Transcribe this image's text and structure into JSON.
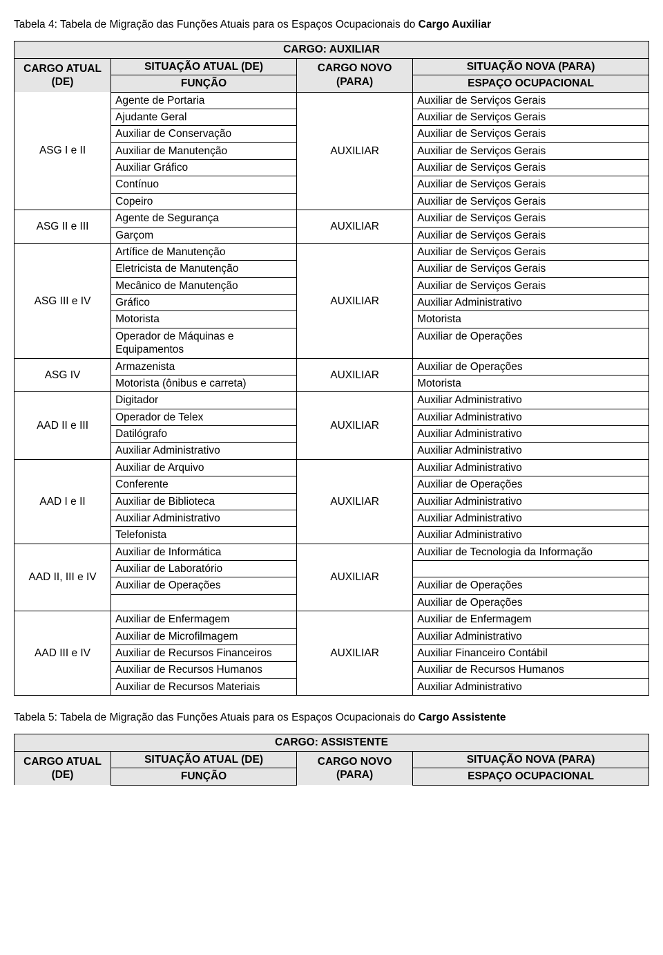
{
  "caption4_prefix": "Tabela 4: Tabela de Migração das Funções Atuais para os Espaços Ocupacionais do ",
  "caption4_bold": "Cargo Auxiliar",
  "table4": {
    "title": "CARGO: AUXILIAR",
    "h_cargo_atual": "CARGO ATUAL (DE)",
    "h_sit_atual": "SITUAÇÃO ATUAL (DE)",
    "h_funcao": "FUNÇÃO",
    "h_cargo_novo": "CARGO NOVO (PARA)",
    "h_sit_nova": "SITUAÇÃO NOVA (PARA)",
    "h_espaco": "ESPAÇO OCUPACIONAL",
    "groups": [
      {
        "label": "ASG  I e II",
        "novo": "AUXILIAR",
        "rows": [
          {
            "f": "Agente de Portaria",
            "e": "Auxiliar de Serviços Gerais"
          },
          {
            "f": "Ajudante Geral",
            "e": "Auxiliar de Serviços Gerais"
          },
          {
            "f": "Auxiliar de Conservação",
            "e": "Auxiliar de Serviços Gerais"
          },
          {
            "f": "Auxiliar de Manutenção",
            "e": "Auxiliar de Serviços Gerais"
          },
          {
            "f": "Auxiliar Gráfico",
            "e": "Auxiliar de Serviços Gerais"
          },
          {
            "f": "Contínuo",
            "e": "Auxiliar de Serviços Gerais"
          },
          {
            "f": "Copeiro",
            "e": "Auxiliar de Serviços Gerais"
          }
        ]
      },
      {
        "label": "ASG  II e III",
        "novo": "AUXILIAR",
        "rows": [
          {
            "f": "Agente de Segurança",
            "e": "Auxiliar de Serviços Gerais"
          },
          {
            "f": "Garçom",
            "e": "Auxiliar de Serviços Gerais"
          }
        ]
      },
      {
        "label": "ASG  III e IV",
        "novo": "AUXILIAR",
        "rows": [
          {
            "f": "Artífice de Manutenção",
            "e": "Auxiliar de Serviços Gerais"
          },
          {
            "f": "Eletricista de Manutenção",
            "e": "Auxiliar de Serviços Gerais"
          },
          {
            "f": "Mecânico de Manutenção",
            "e": "Auxiliar de Serviços Gerais"
          },
          {
            "f": "Gráfico",
            "e": "Auxiliar Administrativo"
          },
          {
            "f": "Motorista",
            "e": "Motorista"
          },
          {
            "f": "Operador de Máquinas e Equipamentos",
            "e": "Auxiliar de Operações"
          }
        ]
      },
      {
        "label": "ASG IV",
        "novo": "AUXILIAR",
        "rows": [
          {
            "f": "Armazenista",
            "e": "Auxiliar de Operações"
          },
          {
            "f": "Motorista (ônibus e carreta)",
            "e": "Motorista"
          }
        ]
      },
      {
        "label": "AAD   II e III",
        "novo": "AUXILIAR",
        "rows": [
          {
            "f": "Digitador",
            "e": "Auxiliar Administrativo"
          },
          {
            "f": "Operador de Telex",
            "e": "Auxiliar Administrativo"
          },
          {
            "f": "Datilógrafo",
            "e": "Auxiliar Administrativo"
          },
          {
            "f": "Auxiliar Administrativo",
            "e": "Auxiliar Administrativo"
          }
        ]
      },
      {
        "label": "AAD  I e II",
        "novo": "AUXILIAR",
        "rows": [
          {
            "f": "Auxiliar de Arquivo",
            "e": "Auxiliar Administrativo"
          },
          {
            "f": "Conferente",
            "e": "Auxiliar de Operações"
          },
          {
            "f": "Auxiliar de Biblioteca",
            "e": "Auxiliar Administrativo"
          },
          {
            "f": "Auxiliar Administrativo",
            "e": "Auxiliar Administrativo"
          },
          {
            "f": "Telefonista",
            "e": "Auxiliar Administrativo"
          }
        ]
      },
      {
        "label": "AAD  II, III e IV",
        "novo": "AUXILIAR",
        "rows": [
          {
            "f": "Auxiliar de Informática",
            "e": "Auxiliar de Tecnologia da Informação"
          },
          {
            "f": "Auxiliar de Laboratório",
            "e": ""
          },
          {
            "f": "Auxiliar de Operações",
            "e": "Auxiliar de Operações"
          },
          {
            "f": "",
            "e": "Auxiliar de Operações"
          }
        ]
      },
      {
        "label": "AAD  III e IV",
        "novo": "AUXILIAR",
        "rows": [
          {
            "f": "Auxiliar de Enfermagem",
            "e": "Auxiliar de Enfermagem"
          },
          {
            "f": "Auxiliar de Microfilmagem",
            "e": "Auxiliar Administrativo"
          },
          {
            "f": "Auxiliar de Recursos Financeiros",
            "e": "Auxiliar Financeiro Contábil"
          },
          {
            "f": "Auxiliar de Recursos Humanos",
            "e": "Auxiliar de Recursos Humanos"
          },
          {
            "f": "Auxiliar de Recursos Materiais",
            "e": "Auxiliar Administrativo"
          }
        ]
      }
    ]
  },
  "caption5_prefix": "Tabela 5: Tabela de Migração das Funções Atuais para os Espaços Ocupacionais do ",
  "caption5_bold": "Cargo Assistente",
  "table5": {
    "title": "CARGO: ASSISTENTE",
    "h_cargo_atual": "CARGO ATUAL (DE)",
    "h_sit_atual": "SITUAÇÃO ATUAL (DE)",
    "h_funcao": "FUNÇÃO",
    "h_cargo_novo": "CARGO NOVO (PARA)",
    "h_sit_nova": "SITUAÇÃO NOVA (PARA)",
    "h_espaco": "ESPAÇO OCUPACIONAL"
  }
}
